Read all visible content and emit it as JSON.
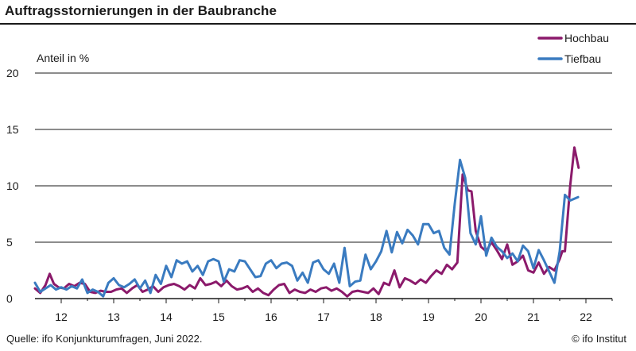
{
  "title": "Auftragsstornierungen in der Baubranche",
  "source": "Quelle: ifo Konjunkturumfragen, Juni 2022.",
  "copyright": "© ifo Institut",
  "chart_data": {
    "type": "line",
    "ylabel": "Anteil in %",
    "ylim": [
      0,
      20
    ],
    "yticks": [
      0,
      5,
      10,
      15,
      20
    ],
    "xlim": [
      11.5,
      22.5
    ],
    "xticks": [
      12,
      13,
      14,
      15,
      16,
      17,
      18,
      19,
      20,
      21,
      22
    ],
    "xtick_labels": [
      "12",
      "13",
      "14",
      "15",
      "16",
      "17",
      "18",
      "19",
      "20",
      "21",
      "22"
    ],
    "grid": "horizontal",
    "legend": "top-right",
    "series": [
      {
        "name": "Hochbau",
        "color": "#8b1a6b",
        "points": [
          [
            11.5,
            0.9
          ],
          [
            11.6,
            0.5
          ],
          [
            11.7,
            1.2
          ],
          [
            11.78,
            2.2
          ],
          [
            11.86,
            1.3
          ],
          [
            11.95,
            1.0
          ],
          [
            12.05,
            0.9
          ],
          [
            12.15,
            1.3
          ],
          [
            12.25,
            1.1
          ],
          [
            12.35,
            1.4
          ],
          [
            12.45,
            1.3
          ],
          [
            12.55,
            0.6
          ],
          [
            12.65,
            0.5
          ],
          [
            12.75,
            0.7
          ],
          [
            12.85,
            0.6
          ],
          [
            12.95,
            0.6
          ],
          [
            13.05,
            0.8
          ],
          [
            13.15,
            0.9
          ],
          [
            13.25,
            0.5
          ],
          [
            13.35,
            0.9
          ],
          [
            13.45,
            1.2
          ],
          [
            13.55,
            0.6
          ],
          [
            13.65,
            0.8
          ],
          [
            13.75,
            1.1
          ],
          [
            13.85,
            0.6
          ],
          [
            13.95,
            1.0
          ],
          [
            14.05,
            1.2
          ],
          [
            14.15,
            1.3
          ],
          [
            14.25,
            1.1
          ],
          [
            14.35,
            0.8
          ],
          [
            14.45,
            1.2
          ],
          [
            14.55,
            0.9
          ],
          [
            14.65,
            1.8
          ],
          [
            14.75,
            1.2
          ],
          [
            14.85,
            1.3
          ],
          [
            14.95,
            1.5
          ],
          [
            15.05,
            1.1
          ],
          [
            15.15,
            1.6
          ],
          [
            15.25,
            1.1
          ],
          [
            15.35,
            0.8
          ],
          [
            15.45,
            0.9
          ],
          [
            15.55,
            1.1
          ],
          [
            15.65,
            0.6
          ],
          [
            15.75,
            0.9
          ],
          [
            15.85,
            0.5
          ],
          [
            15.95,
            0.3
          ],
          [
            16.05,
            0.8
          ],
          [
            16.15,
            1.2
          ],
          [
            16.25,
            1.3
          ],
          [
            16.35,
            0.5
          ],
          [
            16.45,
            0.8
          ],
          [
            16.55,
            0.6
          ],
          [
            16.65,
            0.5
          ],
          [
            16.75,
            0.8
          ],
          [
            16.85,
            0.6
          ],
          [
            16.95,
            0.9
          ],
          [
            17.05,
            1.0
          ],
          [
            17.15,
            0.7
          ],
          [
            17.25,
            0.9
          ],
          [
            17.35,
            0.6
          ],
          [
            17.45,
            0.2
          ],
          [
            17.55,
            0.6
          ],
          [
            17.65,
            0.7
          ],
          [
            17.75,
            0.6
          ],
          [
            17.85,
            0.5
          ],
          [
            17.95,
            0.9
          ],
          [
            18.05,
            0.4
          ],
          [
            18.15,
            1.4
          ],
          [
            18.25,
            1.2
          ],
          [
            18.35,
            2.5
          ],
          [
            18.45,
            1.0
          ],
          [
            18.55,
            1.8
          ],
          [
            18.65,
            1.6
          ],
          [
            18.75,
            1.3
          ],
          [
            18.85,
            1.7
          ],
          [
            18.95,
            1.4
          ],
          [
            19.05,
            2.0
          ],
          [
            19.15,
            2.5
          ],
          [
            19.25,
            2.2
          ],
          [
            19.35,
            3.0
          ],
          [
            19.45,
            2.6
          ],
          [
            19.55,
            3.2
          ],
          [
            19.65,
            11.0
          ],
          [
            19.75,
            9.6
          ],
          [
            19.82,
            9.5
          ],
          [
            19.9,
            6.0
          ],
          [
            20.0,
            4.6
          ],
          [
            20.1,
            4.2
          ],
          [
            20.2,
            5.0
          ],
          [
            20.3,
            4.3
          ],
          [
            20.4,
            3.5
          ],
          [
            20.5,
            4.8
          ],
          [
            20.6,
            3.0
          ],
          [
            20.7,
            3.3
          ],
          [
            20.8,
            3.8
          ],
          [
            20.9,
            2.5
          ],
          [
            21.0,
            2.3
          ],
          [
            21.1,
            3.2
          ],
          [
            21.2,
            2.2
          ],
          [
            21.3,
            2.8
          ],
          [
            21.4,
            2.5
          ],
          [
            21.5,
            3.5
          ],
          [
            21.55,
            4.2
          ],
          [
            21.6,
            4.2
          ],
          [
            21.7,
            10.0
          ],
          [
            21.78,
            13.4
          ],
          [
            21.86,
            11.6
          ]
        ]
      },
      {
        "name": "Tiefbau",
        "color": "#3a7bc0",
        "points": [
          [
            11.5,
            1.4
          ],
          [
            11.6,
            0.6
          ],
          [
            11.7,
            0.9
          ],
          [
            11.8,
            1.2
          ],
          [
            11.9,
            0.8
          ],
          [
            12.0,
            1.0
          ],
          [
            12.1,
            0.8
          ],
          [
            12.2,
            1.1
          ],
          [
            12.3,
            0.9
          ],
          [
            12.4,
            1.7
          ],
          [
            12.5,
            0.5
          ],
          [
            12.6,
            0.8
          ],
          [
            12.7,
            0.6
          ],
          [
            12.8,
            0.2
          ],
          [
            12.9,
            1.4
          ],
          [
            13.0,
            1.8
          ],
          [
            13.1,
            1.2
          ],
          [
            13.2,
            1.0
          ],
          [
            13.3,
            1.3
          ],
          [
            13.4,
            1.7
          ],
          [
            13.5,
            0.9
          ],
          [
            13.6,
            1.6
          ],
          [
            13.7,
            0.5
          ],
          [
            13.8,
            2.1
          ],
          [
            13.9,
            1.3
          ],
          [
            14.0,
            2.9
          ],
          [
            14.1,
            1.9
          ],
          [
            14.2,
            3.4
          ],
          [
            14.3,
            3.1
          ],
          [
            14.4,
            3.3
          ],
          [
            14.5,
            2.4
          ],
          [
            14.6,
            2.9
          ],
          [
            14.7,
            2.1
          ],
          [
            14.8,
            3.3
          ],
          [
            14.9,
            3.5
          ],
          [
            15.0,
            3.3
          ],
          [
            15.1,
            1.5
          ],
          [
            15.2,
            2.6
          ],
          [
            15.3,
            2.4
          ],
          [
            15.4,
            3.4
          ],
          [
            15.5,
            3.3
          ],
          [
            15.6,
            2.6
          ],
          [
            15.7,
            1.9
          ],
          [
            15.8,
            2.0
          ],
          [
            15.9,
            3.1
          ],
          [
            16.0,
            3.4
          ],
          [
            16.1,
            2.7
          ],
          [
            16.2,
            3.1
          ],
          [
            16.3,
            3.2
          ],
          [
            16.4,
            2.9
          ],
          [
            16.5,
            1.6
          ],
          [
            16.6,
            2.3
          ],
          [
            16.7,
            1.4
          ],
          [
            16.8,
            3.2
          ],
          [
            16.9,
            3.4
          ],
          [
            17.0,
            2.6
          ],
          [
            17.1,
            2.2
          ],
          [
            17.2,
            3.1
          ],
          [
            17.3,
            1.4
          ],
          [
            17.4,
            4.5
          ],
          [
            17.5,
            1.1
          ],
          [
            17.6,
            1.5
          ],
          [
            17.7,
            1.6
          ],
          [
            17.8,
            3.9
          ],
          [
            17.9,
            2.6
          ],
          [
            18.0,
            3.3
          ],
          [
            18.1,
            4.2
          ],
          [
            18.2,
            6.0
          ],
          [
            18.3,
            4.1
          ],
          [
            18.4,
            5.9
          ],
          [
            18.5,
            4.9
          ],
          [
            18.6,
            6.1
          ],
          [
            18.7,
            5.6
          ],
          [
            18.8,
            4.8
          ],
          [
            18.9,
            6.6
          ],
          [
            19.0,
            6.6
          ],
          [
            19.1,
            5.8
          ],
          [
            19.2,
            6.0
          ],
          [
            19.3,
            4.5
          ],
          [
            19.4,
            3.9
          ],
          [
            19.5,
            8.4
          ],
          [
            19.6,
            12.3
          ],
          [
            19.7,
            10.7
          ],
          [
            19.8,
            5.8
          ],
          [
            19.9,
            4.8
          ],
          [
            20.0,
            7.3
          ],
          [
            20.1,
            3.8
          ],
          [
            20.2,
            5.4
          ],
          [
            20.3,
            4.6
          ],
          [
            20.4,
            4.2
          ],
          [
            20.5,
            3.6
          ],
          [
            20.6,
            4.0
          ],
          [
            20.7,
            3.3
          ],
          [
            20.8,
            4.7
          ],
          [
            20.9,
            4.2
          ],
          [
            21.0,
            2.7
          ],
          [
            21.1,
            4.3
          ],
          [
            21.2,
            3.4
          ],
          [
            21.3,
            2.4
          ],
          [
            21.4,
            1.4
          ],
          [
            21.5,
            4.2
          ],
          [
            21.6,
            9.2
          ],
          [
            21.7,
            8.7
          ],
          [
            21.85,
            9.0
          ]
        ]
      }
    ]
  }
}
